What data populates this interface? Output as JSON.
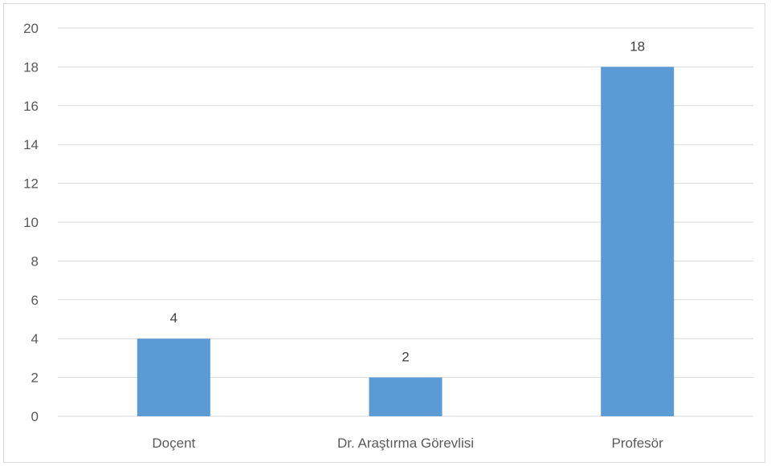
{
  "chart_data": {
    "type": "bar",
    "title": "",
    "xlabel": "",
    "ylabel": "",
    "categories": [
      "Doçent",
      "Dr. Araştırma Görevlisi",
      "Profesör"
    ],
    "values": [
      4,
      2,
      18
    ],
    "data_labels": [
      "4",
      "2",
      "18"
    ],
    "ylim": [
      0,
      20
    ],
    "yticks": [
      0,
      2,
      4,
      6,
      8,
      10,
      12,
      14,
      16,
      18,
      20
    ],
    "grid": true,
    "legend": "none",
    "bar_color": "#5b9bd5",
    "gridline_color": "#d9d9d9",
    "text_color": "#595959"
  }
}
